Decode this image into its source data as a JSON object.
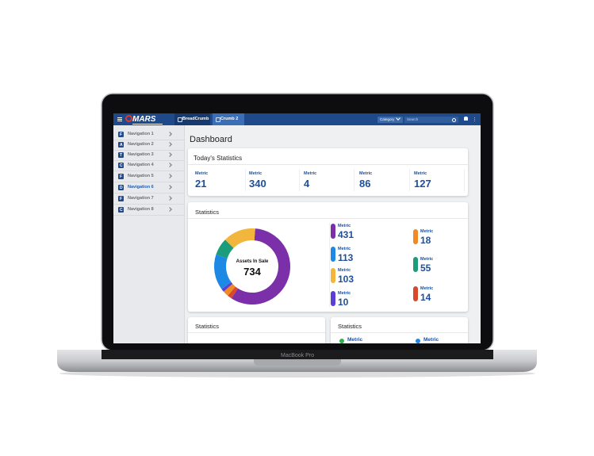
{
  "device_label": "MacBook Pro",
  "header": {
    "logo": "MARS",
    "breadcrumbs": [
      "BreadCrumb",
      "Crumb 2"
    ],
    "category": "Category",
    "search": "Search"
  },
  "navigation": [
    {
      "icon": "F",
      "label": "Navigation 1"
    },
    {
      "icon": "A",
      "label": "Navigation 2"
    },
    {
      "icon": "T",
      "label": "Navigation 3"
    },
    {
      "icon": "C",
      "label": "Navigation 4"
    },
    {
      "icon": "F",
      "label": "Navigation 5"
    },
    {
      "icon": "D",
      "label": "Navigation 6",
      "active": true
    },
    {
      "icon": "F",
      "label": "Navigation 7"
    },
    {
      "icon": "C",
      "label": "Navigation 8"
    }
  ],
  "page_title": "Dashboard",
  "todays_statistics": {
    "title": "Today's Statistics",
    "metrics": [
      {
        "label": "Metric",
        "value": 21
      },
      {
        "label": "Metric",
        "value": 340
      },
      {
        "label": "Metric",
        "value": 4
      },
      {
        "label": "Metric",
        "value": 86
      },
      {
        "label": "Metric",
        "value": 127
      }
    ]
  },
  "statistics": {
    "title": "Statistics",
    "donut": {
      "label": "Assets In Sale",
      "value": 734
    },
    "metrics": [
      {
        "label": "Metric",
        "value": 431,
        "color": "#7b2fa8"
      },
      {
        "label": "Metric",
        "value": 113,
        "color": "#1e88e5"
      },
      {
        "label": "Metric",
        "value": 103,
        "color": "#f2b63c"
      },
      {
        "label": "Metric",
        "value": 10,
        "color": "#5a3fd6"
      },
      {
        "label": "Metric",
        "value": 18,
        "color": "#f08a24"
      },
      {
        "label": "Metric",
        "value": 55,
        "color": "#1b9c7a"
      },
      {
        "label": "Metric",
        "value": 14,
        "color": "#d9482b"
      }
    ]
  },
  "bottom_panels": [
    {
      "title": "Statistics"
    },
    {
      "title": "Statistics",
      "metrics": [
        {
          "label": "Metric",
          "color": "#2bb24c"
        },
        {
          "label": "Metric",
          "color": "#1e88e5"
        }
      ]
    }
  ]
}
